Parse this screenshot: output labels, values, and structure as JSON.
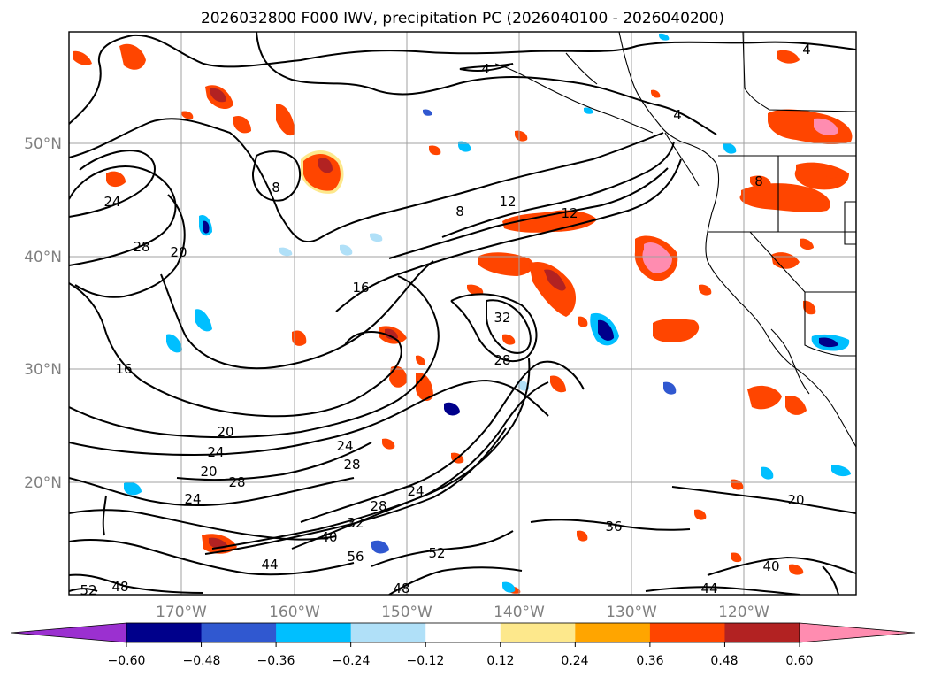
{
  "title": "2026032800 F000 IWV, precipitation PC (2026040100 - 2026040200)",
  "map": {
    "lat_labels": [
      "50°N",
      "40°N",
      "30°N",
      "20°N"
    ],
    "lon_labels": [
      "170°W",
      "160°W",
      "150°W",
      "140°W",
      "130°W",
      "120°W"
    ],
    "contour_labels": [
      "4",
      "4",
      "4",
      "8",
      "8",
      "8",
      "12",
      "12",
      "16",
      "16",
      "20",
      "20",
      "20",
      "20",
      "24",
      "24",
      "24",
      "24",
      "24",
      "28",
      "28",
      "28",
      "28",
      "28",
      "32",
      "32",
      "36",
      "40",
      "40",
      "44",
      "44",
      "48",
      "48",
      "52",
      "52",
      "56"
    ]
  },
  "colorbar": {
    "ticks": [
      "−0.60",
      "−0.48",
      "−0.36",
      "−0.24",
      "−0.12",
      "0.12",
      "0.24",
      "0.36",
      "0.48",
      "0.60"
    ],
    "colors": [
      "#9b30d0",
      "#00008b",
      "#3058d0",
      "#00bfff",
      "#b0e0f8",
      "#ffffff",
      "#fde88c",
      "#ffa500",
      "#ff4500",
      "#b22222",
      "#ff8cb0"
    ],
    "extend": "both"
  }
}
